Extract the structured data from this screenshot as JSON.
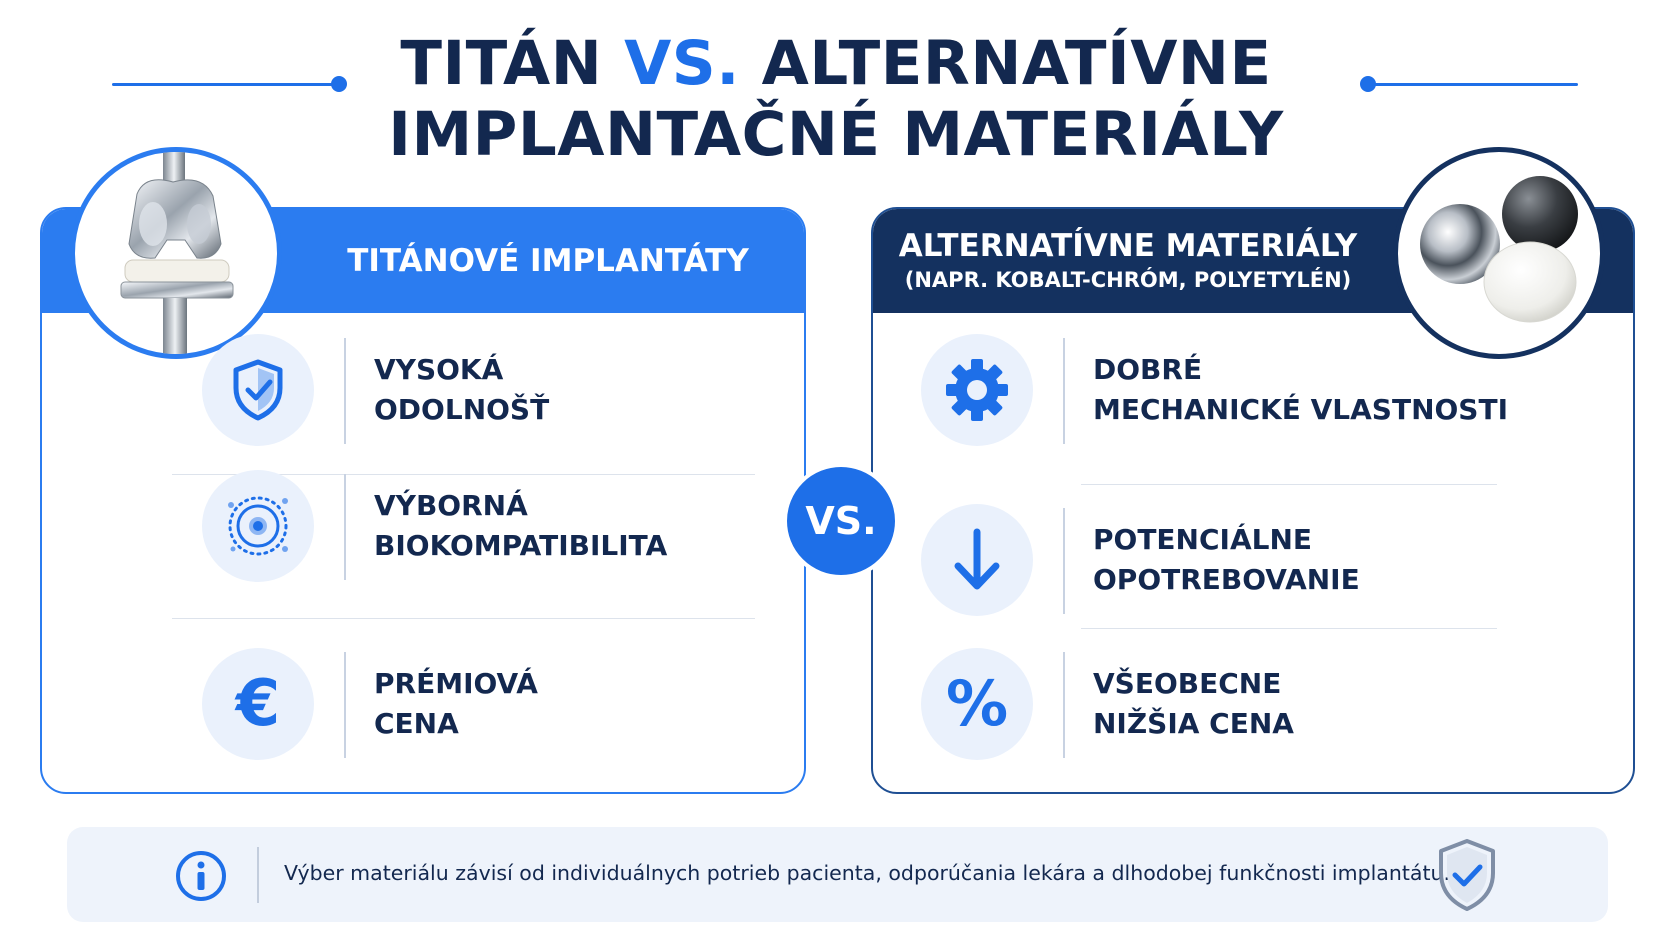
{
  "title": {
    "part1": "TITÁN ",
    "vs": "VS.",
    "part2": " ALTERNATÍVNE",
    "line2": "IMPLANTAČNÉ MATERIÁLY"
  },
  "left_panel": {
    "heading": "TITÁNOVÉ IMPLANTÁTY",
    "image_icon": "knee-implant-image",
    "features": [
      {
        "icon": "shield-check-icon",
        "line1": "VYSOKÁ",
        "line2": "ODOLNOŠŤ"
      },
      {
        "icon": "cell-icon",
        "line1": "VÝBORNÁ",
        "line2": "BIOKOMPATIBILITA"
      },
      {
        "icon": "euro-icon",
        "line1": "PRÉMIOVÁ",
        "line2": "CENA"
      }
    ]
  },
  "vs_badge": "VS.",
  "right_panel": {
    "heading": "ALTERNATÍVNE MATERIÁLY",
    "subheading": "(NAPR. KOBALT-CHRÓM, POLYETYLÉN)",
    "image_icon": "material-spheres-image",
    "features": [
      {
        "icon": "gear-icon",
        "line1": "DOBRÉ",
        "line2": "MECHANICKÉ VLASTNOSTI"
      },
      {
        "icon": "arrow-down-icon",
        "line1": "POTENCIÁLNE",
        "line2": "OPOTREBOVANIE"
      },
      {
        "icon": "percent-icon",
        "line1": "VŠEOBECNE",
        "line2": "NIŽŠIA CENA"
      }
    ]
  },
  "footer": {
    "text": "Výber materiálu závisí od individuálnych potrieb pacienta, odporúčania lekára a dlhodobej funkčnosti implantátu.",
    "icon": "info-icon",
    "badge_icon": "shield-check-icon"
  },
  "colors": {
    "primary_blue": "#2b7cf0",
    "navy": "#14315f",
    "text_dark": "#13284f",
    "icon_bg": "#eaf1fc",
    "footer_bg": "#eef3fb"
  }
}
